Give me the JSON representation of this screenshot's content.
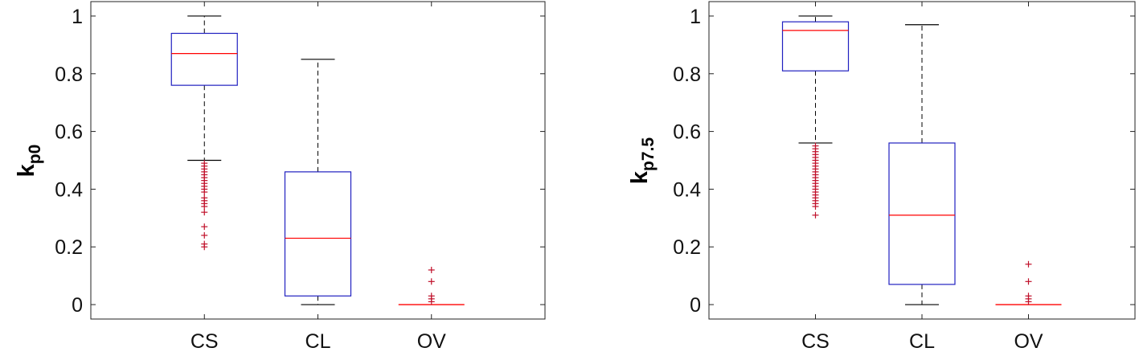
{
  "chart_data": [
    {
      "type": "box",
      "ylabel": {
        "main": "k",
        "sub": "p0"
      },
      "ylim": [
        -0.05,
        1.05
      ],
      "yticks": [
        0,
        0.2,
        0.4,
        0.6,
        0.8,
        1
      ],
      "ytick_labels": [
        "0",
        "0.2",
        "0.4",
        "0.6",
        "0.8",
        "1"
      ],
      "grid": false,
      "categories": [
        "CS",
        "CL",
        "OV"
      ],
      "boxes": [
        {
          "category": "CS",
          "q1": 0.76,
          "median": 0.87,
          "q3": 0.94,
          "whisker_low": 0.5,
          "whisker_high": 1.0,
          "outliers": [
            0.49,
            0.48,
            0.47,
            0.46,
            0.45,
            0.44,
            0.43,
            0.42,
            0.41,
            0.4,
            0.39,
            0.37,
            0.36,
            0.35,
            0.34,
            0.32,
            0.27,
            0.24,
            0.21,
            0.2
          ]
        },
        {
          "category": "CL",
          "q1": 0.03,
          "median": 0.23,
          "q3": 0.46,
          "whisker_low": 0.0,
          "whisker_high": 0.85,
          "outliers": []
        },
        {
          "category": "OV",
          "q1": 0.0,
          "median": 0.0,
          "q3": 0.0,
          "whisker_low": 0.0,
          "whisker_high": 0.0,
          "outliers": [
            0.12,
            0.08,
            0.03,
            0.02,
            0.01
          ]
        }
      ]
    },
    {
      "type": "box",
      "ylabel": {
        "main": "k",
        "sub": "p7.5"
      },
      "ylim": [
        -0.05,
        1.05
      ],
      "yticks": [
        0,
        0.2,
        0.4,
        0.6,
        0.8,
        1
      ],
      "ytick_labels": [
        "0",
        "0.2",
        "0.4",
        "0.6",
        "0.8",
        "1"
      ],
      "grid": false,
      "categories": [
        "CS",
        "CL",
        "OV"
      ],
      "boxes": [
        {
          "category": "CS",
          "q1": 0.81,
          "median": 0.95,
          "q3": 0.98,
          "whisker_low": 0.56,
          "whisker_high": 1.0,
          "outliers": [
            0.55,
            0.54,
            0.53,
            0.52,
            0.51,
            0.5,
            0.49,
            0.48,
            0.47,
            0.46,
            0.45,
            0.44,
            0.43,
            0.42,
            0.41,
            0.4,
            0.39,
            0.38,
            0.37,
            0.36,
            0.35,
            0.34,
            0.31
          ]
        },
        {
          "category": "CL",
          "q1": 0.07,
          "median": 0.31,
          "q3": 0.56,
          "whisker_low": 0.0,
          "whisker_high": 0.97,
          "outliers": []
        },
        {
          "category": "OV",
          "q1": 0.0,
          "median": 0.0,
          "q3": 0.0,
          "whisker_low": 0.0,
          "whisker_high": 0.0,
          "outliers": [
            0.14,
            0.08,
            0.03,
            0.02,
            0.01
          ]
        }
      ]
    }
  ],
  "colors": {
    "box": "#2020c0",
    "median": "#ff0000",
    "whisker": "#000000",
    "outlier": "#c0102a",
    "axis": "#222222"
  }
}
